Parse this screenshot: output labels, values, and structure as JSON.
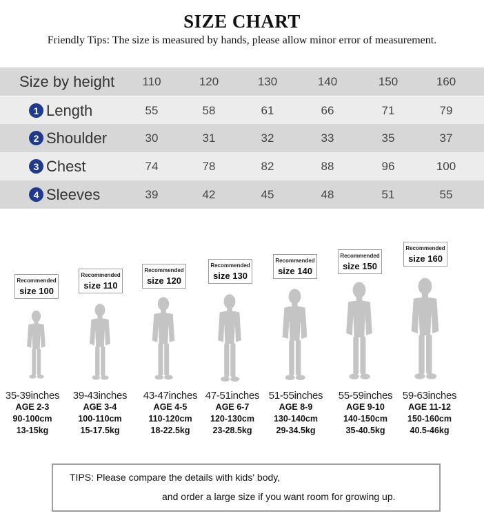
{
  "header": {
    "title": "SIZE CHART",
    "tips": "Friendly Tips: The size is measured by hands, please allow minor error of measurement."
  },
  "table": {
    "header_label": "Size by height",
    "columns": [
      "110",
      "120",
      "130",
      "140",
      "150",
      "160"
    ],
    "rows": [
      {
        "num": "1",
        "label": "Length",
        "values": [
          "55",
          "58",
          "61",
          "66",
          "71",
          "79"
        ]
      },
      {
        "num": "2",
        "label": "Shoulder",
        "values": [
          "30",
          "31",
          "32",
          "33",
          "35",
          "37"
        ]
      },
      {
        "num": "3",
        "label": "Chest",
        "values": [
          "74",
          "78",
          "82",
          "88",
          "96",
          "100"
        ]
      },
      {
        "num": "4",
        "label": "Sleeves",
        "values": [
          "39",
          "42",
          "45",
          "48",
          "51",
          "55"
        ]
      }
    ]
  },
  "figures": [
    {
      "recommended": "Recommended",
      "size": "size 100",
      "inches": "35-39inches",
      "age": "AGE 2-3",
      "cm": "90-100cm",
      "kg": "13-15kg"
    },
    {
      "recommended": "Recommended",
      "size": "size 110",
      "inches": "39-43inches",
      "age": "AGE 3-4",
      "cm": "100-110cm",
      "kg": "15-17.5kg"
    },
    {
      "recommended": "Recommended",
      "size": "size 120",
      "inches": "43-47inches",
      "age": "AGE 4-5",
      "cm": "110-120cm",
      "kg": "18-22.5kg"
    },
    {
      "recommended": "Recommended",
      "size": "size 130",
      "inches": "47-51inches",
      "age": "AGE 6-7",
      "cm": "120-130cm",
      "kg": "23-28.5kg"
    },
    {
      "recommended": "Recommended",
      "size": "size 140",
      "inches": "51-55inches",
      "age": "AGE 8-9",
      "cm": "130-140cm",
      "kg": "29-34.5kg"
    },
    {
      "recommended": "Recommended",
      "size": "size 150",
      "inches": "55-59inches",
      "age": "AGE 9-10",
      "cm": "140-150cm",
      "kg": "35-40.5kg"
    },
    {
      "recommended": "Recommended",
      "size": "size 160",
      "inches": "59-63inches",
      "age": "AGE 11-12",
      "cm": "150-160cm",
      "kg": "40.5-46kg"
    }
  ],
  "footer": {
    "tip_line1": "TIPS: Please compare the details with kids' body,",
    "tip_line2": "and order a large size if you want room for growing up."
  },
  "colors": {
    "badge": "#1f3a8a",
    "row_dark": "#d7d7d7",
    "row_light": "#ececec",
    "silhouette": "#c4c4c4"
  }
}
